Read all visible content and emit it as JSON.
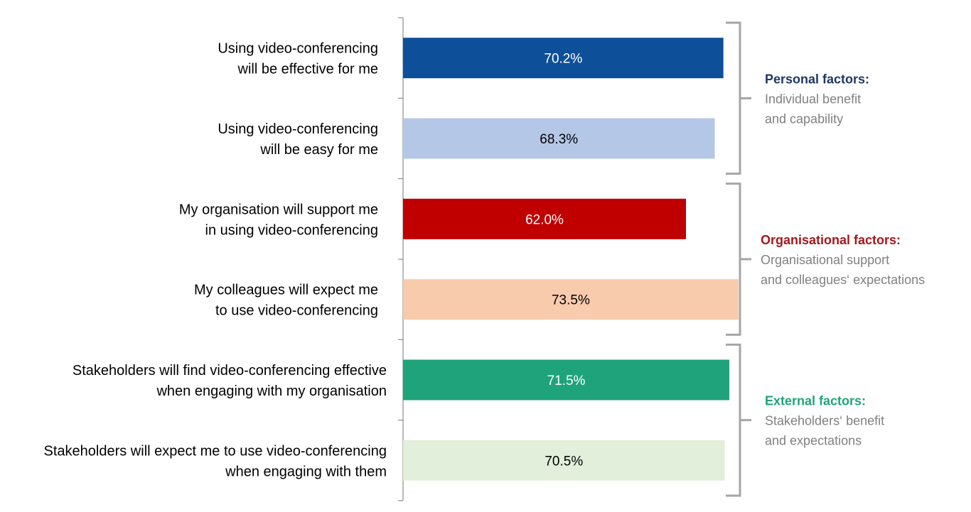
{
  "chart_data": {
    "type": "bar",
    "orientation": "horizontal",
    "xlim": [
      0,
      100
    ],
    "categories": [
      [
        "Using video-conferencing",
        "will be effective for me"
      ],
      [
        "Using video-conferencing",
        "will be easy for me"
      ],
      [
        "My organisation will support me",
        "in using video-conferencing"
      ],
      [
        "My colleagues will expect me",
        "to use video-conferencing"
      ],
      [
        "Stakeholders will find video-conferencing effective",
        "when engaging with my organisation"
      ],
      [
        "Stakeholders will expect me to use video-conferencing",
        "when engaging with them"
      ]
    ],
    "values": [
      70.2,
      68.3,
      62.0,
      73.5,
      71.5,
      70.5
    ],
    "value_labels": [
      "70.2%",
      "68.3%",
      "62.0%",
      "73.5%",
      "71.5%",
      "70.5%"
    ],
    "bar_colors": [
      "#0E4F9A",
      "#B4C7E7",
      "#C00000",
      "#F8CBAD",
      "#1FA37A",
      "#E2EFDA"
    ],
    "label_colors": [
      "#FFFFFF",
      "#000000",
      "#FFFFFF",
      "#000000",
      "#FFFFFF",
      "#000000"
    ],
    "groups": [
      {
        "title": "Personal factors:",
        "title_color": "#1F3864",
        "description": [
          "Individual benefit",
          "and capability"
        ],
        "bars": [
          0,
          1
        ]
      },
      {
        "title": "Organisational factors:",
        "title_color": "#A5171B",
        "description": [
          "Organisational support",
          "and colleagues‘ expectations"
        ],
        "bars": [
          2,
          3
        ]
      },
      {
        "title": "External factors:",
        "title_color": "#1FA37A",
        "description": [
          "Stakeholders‘ benefit",
          "and expectations"
        ],
        "bars": [
          4,
          5
        ]
      }
    ],
    "grid": false,
    "legend": "none"
  }
}
